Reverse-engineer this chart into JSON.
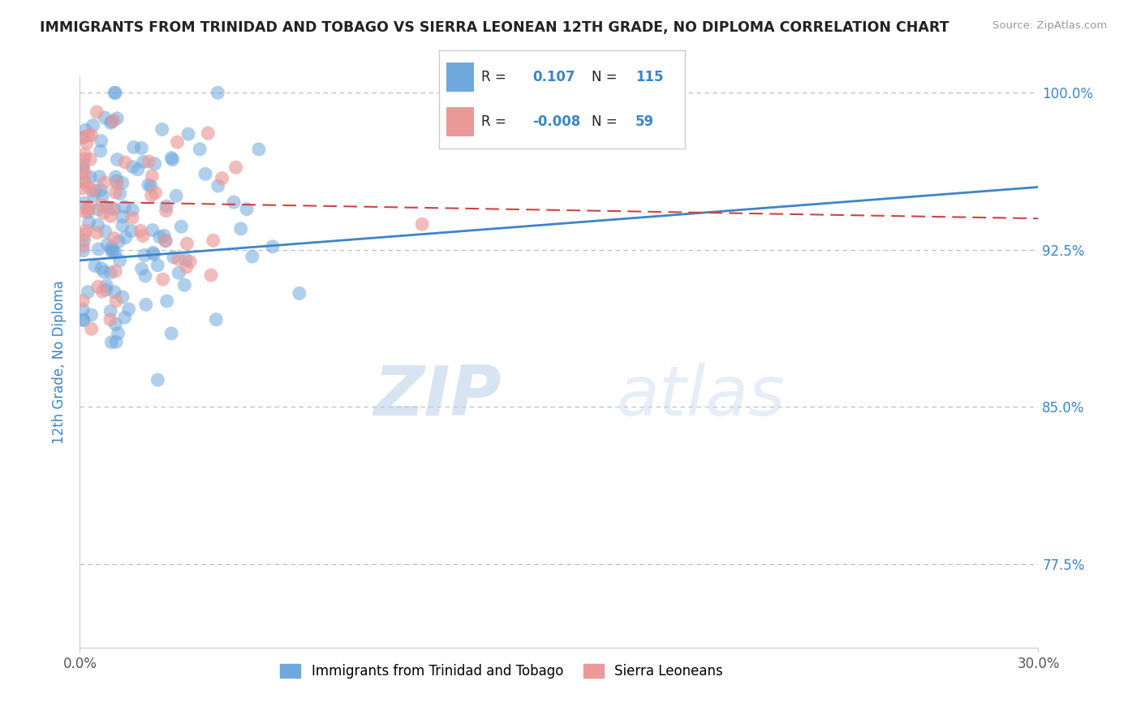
{
  "title": "IMMIGRANTS FROM TRINIDAD AND TOBAGO VS SIERRA LEONEAN 12TH GRADE, NO DIPLOMA CORRELATION CHART",
  "source": "Source: ZipAtlas.com",
  "ylabel": "12th Grade, No Diploma",
  "legend_label_blue": "Immigrants from Trinidad and Tobago",
  "legend_label_pink": "Sierra Leoneans",
  "R_blue": 0.107,
  "N_blue": 115,
  "R_pink": -0.008,
  "N_pink": 59,
  "xlim": [
    0.0,
    0.3
  ],
  "ylim": [
    0.735,
    1.008
  ],
  "ytick_positions": [
    0.775,
    0.85,
    0.925,
    1.0
  ],
  "ytick_labels": [
    "77.5%",
    "85.0%",
    "92.5%",
    "100.0%"
  ],
  "color_blue": "#6fa8dc",
  "color_pink": "#ea9999",
  "color_blue_line": "#3d85c8",
  "color_pink_line": "#cc4444",
  "watermark_zip": "ZIP",
  "watermark_atlas": "atlas",
  "blue_line_x0": 0.0,
  "blue_line_y0": 0.92,
  "blue_line_x1": 0.3,
  "blue_line_y1": 0.955,
  "pink_line_x0": 0.0,
  "pink_line_y0": 0.948,
  "pink_line_x1": 0.3,
  "pink_line_y1": 0.94
}
